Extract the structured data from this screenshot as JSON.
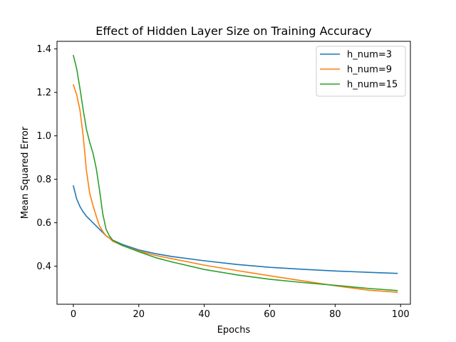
{
  "chart_data": {
    "type": "line",
    "title": "Effect of Hidden Layer Size on Training Accuracy",
    "xlabel": "Epochs",
    "ylabel": "Mean Squared Error",
    "xlim": [
      -5,
      103
    ],
    "ylim": [
      0.225,
      1.435
    ],
    "xticks": [
      0,
      20,
      40,
      60,
      80,
      100
    ],
    "yticks": [
      0.4,
      0.6,
      0.8,
      1.0,
      1.2,
      1.4
    ],
    "xtick_labels": [
      "0",
      "20",
      "40",
      "60",
      "80",
      "100"
    ],
    "ytick_labels": [
      "0.4",
      "0.6",
      "0.8",
      "1.0",
      "1.2",
      "1.4"
    ],
    "grid": false,
    "legend_position": "upper right",
    "series": [
      {
        "name": "h_num=3",
        "color": "#1f77b4",
        "x": [
          0,
          1,
          2,
          3,
          4,
          5,
          6,
          7,
          8,
          9,
          10,
          12,
          15,
          20,
          25,
          30,
          40,
          50,
          60,
          70,
          80,
          90,
          99
        ],
        "y": [
          0.77,
          0.71,
          0.675,
          0.65,
          0.63,
          0.615,
          0.6,
          0.585,
          0.57,
          0.555,
          0.54,
          0.52,
          0.5,
          0.475,
          0.458,
          0.445,
          0.425,
          0.408,
          0.395,
          0.386,
          0.378,
          0.372,
          0.367
        ]
      },
      {
        "name": "h_num=9",
        "color": "#ff7f0e",
        "x": [
          0,
          1,
          2,
          3,
          4,
          5,
          6,
          7,
          8,
          9,
          10,
          11,
          12,
          15,
          20,
          25,
          30,
          40,
          50,
          60,
          70,
          80,
          90,
          99
        ],
        "y": [
          1.235,
          1.19,
          1.12,
          1.0,
          0.84,
          0.735,
          0.68,
          0.63,
          0.585,
          0.56,
          0.54,
          0.53,
          0.515,
          0.495,
          0.47,
          0.45,
          0.435,
          0.405,
          0.38,
          0.356,
          0.333,
          0.31,
          0.29,
          0.28
        ]
      },
      {
        "name": "h_num=15",
        "color": "#2ca02c",
        "x": [
          0,
          1,
          2,
          3,
          4,
          5,
          6,
          7,
          8,
          9,
          10,
          11,
          12,
          15,
          20,
          25,
          30,
          40,
          50,
          60,
          70,
          80,
          90,
          99
        ],
        "y": [
          1.37,
          1.31,
          1.22,
          1.12,
          1.03,
          0.97,
          0.92,
          0.85,
          0.75,
          0.64,
          0.57,
          0.54,
          0.52,
          0.495,
          0.467,
          0.44,
          0.42,
          0.385,
          0.36,
          0.34,
          0.325,
          0.312,
          0.298,
          0.288
        ]
      }
    ]
  }
}
